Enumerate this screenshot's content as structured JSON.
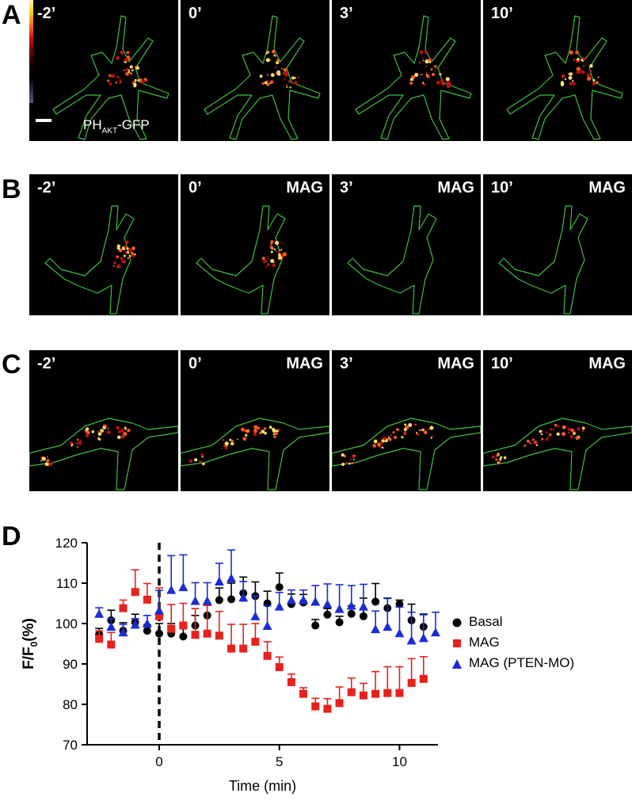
{
  "panels": {
    "rows": [
      {
        "letter": "A",
        "cells": [
          {
            "time": "-2’",
            "condition": ""
          },
          {
            "time": "0’",
            "condition": ""
          },
          {
            "time": "3’",
            "condition": ""
          },
          {
            "time": "10’",
            "condition": ""
          }
        ],
        "protein_label": {
          "main": "PH",
          "sub": "AKT",
          "suffix": "-GFP"
        }
      },
      {
        "letter": "B",
        "cells": [
          {
            "time": "-2’",
            "condition": ""
          },
          {
            "time": "0’",
            "condition": "MAG"
          },
          {
            "time": "3’",
            "condition": "MAG"
          },
          {
            "time": "10’",
            "condition": "MAG"
          }
        ]
      },
      {
        "letter": "C",
        "cells": [
          {
            "time": "-2’",
            "condition": ""
          },
          {
            "time": "0’",
            "condition": "MAG"
          },
          {
            "time": "3’",
            "condition": "MAG"
          },
          {
            "time": "10’",
            "condition": "MAG"
          }
        ]
      }
    ],
    "colors": {
      "outline": "#3fbf3f",
      "hot": "#ffe066",
      "mid": "#ff5a1a",
      "deep": "#c01010"
    }
  },
  "chart_panel_letter": "D",
  "chart_data": {
    "type": "scatter",
    "title": "",
    "xlabel": "Time (min)",
    "ylabel": "F/F0(%)",
    "ylabel_main": "F/F",
    "ylabel_sub": "0",
    "ylabel_suffix": "(%)",
    "xlim": [
      -3,
      11.6
    ],
    "ylim": [
      70,
      120
    ],
    "xticks": [
      0,
      5,
      10
    ],
    "yticks": [
      70,
      80,
      90,
      100,
      110,
      120
    ],
    "stimulus_line_x": 0,
    "series": [
      {
        "name": "Basal",
        "marker": "circle",
        "color": "#000000",
        "x": [
          -2.5,
          -2,
          -1.5,
          -1,
          -0.5,
          0,
          0.5,
          1,
          1.5,
          2,
          2.5,
          3,
          3.5,
          4,
          4.5,
          5,
          5.5,
          6,
          6.5,
          7,
          7.5,
          8,
          8.5,
          9,
          9.5,
          10,
          10.5,
          11
        ],
        "y": [
          97.3,
          100.8,
          98.2,
          100.3,
          98.2,
          97.5,
          97.5,
          96.8,
          99.5,
          102,
          105.8,
          106,
          107.5,
          106.8,
          105,
          109,
          104.8,
          105.2,
          99.5,
          102.2,
          100.3,
          102.4,
          101.8,
          105.4,
          103.8,
          104.8,
          100.8,
          99.2
        ],
        "err": [
          1.5,
          2.5,
          2,
          2,
          1.5,
          2.5,
          2.5,
          2.5,
          2.5,
          2.5,
          3,
          4,
          4,
          3.5,
          3,
          3.5,
          2.5,
          2,
          1.5,
          1.5,
          1.5,
          2,
          4.5,
          4.5,
          2.5,
          1,
          4,
          3
        ]
      },
      {
        "name": "MAG",
        "marker": "square",
        "color": "#e8211d",
        "x": [
          -2.5,
          -2,
          -1.5,
          -1,
          -0.5,
          0,
          0.5,
          1,
          1.5,
          2,
          2.5,
          3,
          3.5,
          4,
          4.5,
          5,
          5.5,
          6,
          6.5,
          7,
          7.5,
          8,
          8.5,
          9,
          9.5,
          10,
          10.5,
          11
        ],
        "y": [
          96.2,
          94.8,
          103.8,
          107.8,
          105.9,
          101.8,
          98.7,
          99.5,
          97.2,
          97.5,
          97,
          93.8,
          93.8,
          95.5,
          92,
          89.2,
          85.5,
          82.6,
          79.5,
          78.9,
          80.3,
          83,
          82.2,
          82.6,
          82.8,
          82.8,
          85.3,
          86.3
        ],
        "err": [
          2,
          3,
          2,
          5.5,
          4,
          7,
          6,
          5.5,
          6.5,
          7,
          6,
          6,
          6,
          4.5,
          3.5,
          2.5,
          2,
          1.5,
          2,
          2.5,
          4,
          3.5,
          3,
          5.5,
          6.5,
          6.5,
          6,
          5.5
        ]
      },
      {
        "name": "MAG (PTEN-MO)",
        "marker": "triangle",
        "color": "#1a2bd8",
        "x": [
          -2.5,
          -2,
          -1.5,
          -1,
          -0.5,
          0,
          0.5,
          1,
          1.5,
          2,
          2.5,
          3,
          3.5,
          4,
          4.5,
          5,
          5.5,
          6,
          6.5,
          7,
          7.5,
          8,
          8.5,
          9,
          9.5,
          10,
          10.5,
          11,
          11.5
        ],
        "y": [
          102.4,
          99.2,
          97.8,
          99.7,
          100,
          103.2,
          108.3,
          109,
          105.6,
          105.6,
          110.4,
          111.2,
          106.4,
          101.8,
          99.4,
          104.2,
          105.8,
          105.8,
          105.4,
          104.8,
          103.6,
          104.4,
          104.2,
          98.6,
          99.2,
          97.6,
          95.8,
          96.4,
          97.8
        ],
        "err": [
          1.5,
          2,
          2,
          1.5,
          2,
          5,
          8.5,
          8,
          4.5,
          4.5,
          4.5,
          7,
          4,
          5,
          5,
          3.5,
          2.5,
          2.5,
          4,
          5,
          6,
          5,
          5.5,
          4.5,
          7,
          6.5,
          7,
          6,
          5
        ]
      }
    ],
    "legend": {
      "position": "right",
      "entries": [
        "Basal",
        "MAG",
        "MAG (PTEN-MO)"
      ]
    }
  }
}
